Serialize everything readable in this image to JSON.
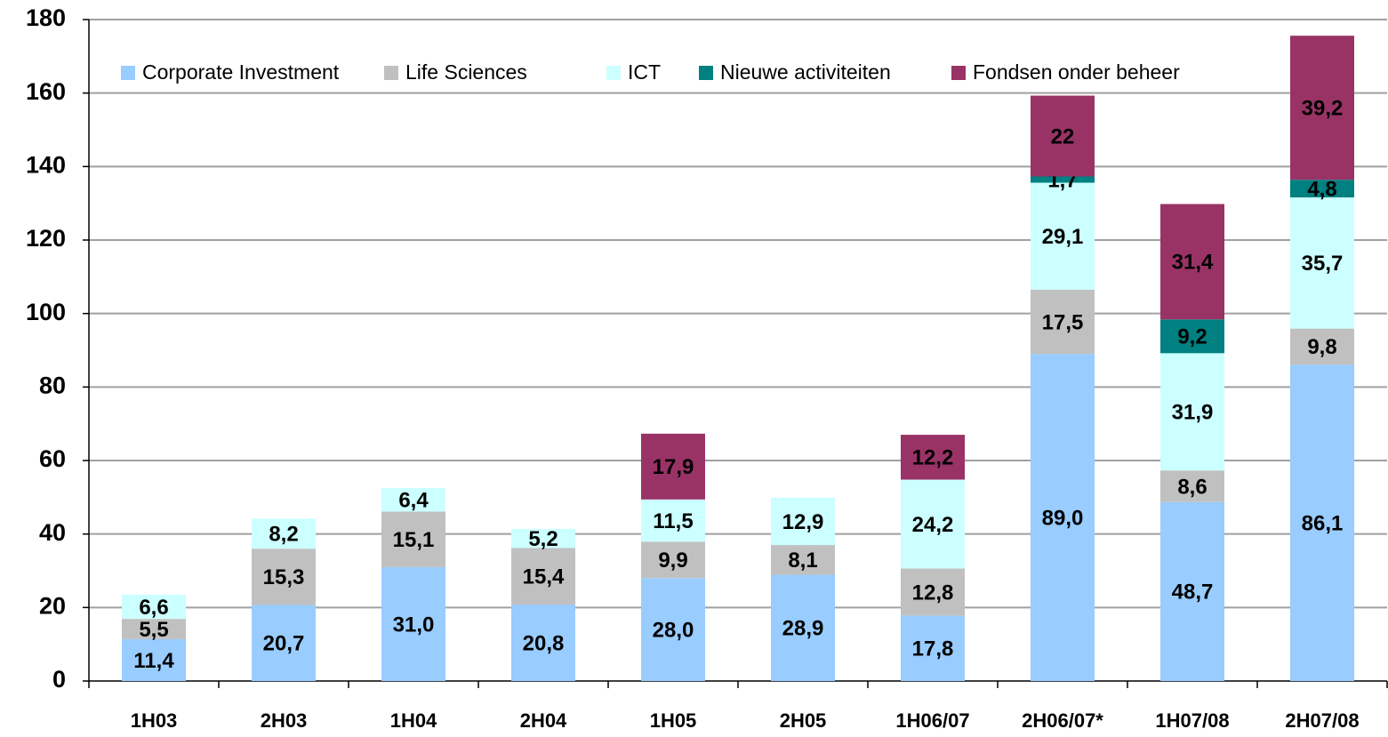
{
  "chart_data": {
    "type": "bar",
    "stacked": true,
    "categories": [
      "1H03",
      "2H03",
      "1H04",
      "2H04",
      "1H05",
      "2H05",
      "1H06/07",
      "2H06/07*",
      "1H07/08",
      "2H07/08"
    ],
    "series": [
      {
        "name": "Corporate Investment",
        "color": "#99ccff",
        "values": [
          11.4,
          20.7,
          31.0,
          20.8,
          28.0,
          28.9,
          17.8,
          89.0,
          48.7,
          86.1
        ],
        "value_labels": [
          "11,4",
          "20,7",
          "31,0",
          "20,8",
          "28,0",
          "28,9",
          "17,8",
          "89,0",
          "48,7",
          "86,1"
        ]
      },
      {
        "name": "Life Sciences",
        "color": "#c0c0c0",
        "values": [
          5.5,
          15.3,
          15.1,
          15.4,
          9.9,
          8.1,
          12.8,
          17.5,
          8.6,
          9.8
        ],
        "value_labels": [
          "5,5",
          "15,3",
          "15,1",
          "15,4",
          "9,9",
          "8,1",
          "12,8",
          "17,5",
          "8,6",
          "9,8"
        ]
      },
      {
        "name": "ICT",
        "color": "#ccffff",
        "values": [
          6.6,
          8.2,
          6.4,
          5.2,
          11.5,
          12.9,
          24.2,
          29.1,
          31.9,
          35.7
        ],
        "value_labels": [
          "6,6",
          "8,2",
          "6,4",
          "5,2",
          "11,5",
          "12,9",
          "24,2",
          "29,1",
          "31,9",
          "35,7"
        ]
      },
      {
        "name": "Nieuwe activiteiten",
        "color": "#008080",
        "values": [
          null,
          null,
          null,
          null,
          null,
          null,
          null,
          1.7,
          9.2,
          4.8
        ],
        "value_labels": [
          null,
          null,
          null,
          null,
          null,
          null,
          null,
          "1,7",
          "9,2",
          "4,8"
        ]
      },
      {
        "name": "Fondsen onder beheer",
        "color": "#993366",
        "values": [
          null,
          null,
          null,
          null,
          17.9,
          null,
          12.2,
          22,
          31.4,
          39.2
        ],
        "value_labels": [
          null,
          null,
          null,
          null,
          "17,9",
          null,
          "12,2",
          "22",
          "31,4",
          "39,2"
        ]
      }
    ],
    "ylim": [
      0,
      180
    ],
    "yticks": [
      0,
      20,
      40,
      60,
      80,
      100,
      120,
      140,
      160,
      180
    ],
    "grid": true,
    "legend": "top"
  }
}
